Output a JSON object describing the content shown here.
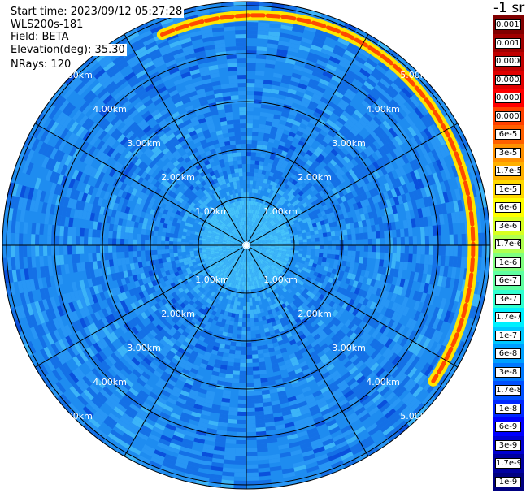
{
  "info": {
    "start_time": "Start time: 2023/09/12 05:27:28",
    "instrument": "WLS200s-181",
    "field": "Field: BETA",
    "elevation": "Elevation(deg): 35.30",
    "nrays": "NRays: 120"
  },
  "unit_label": "-1 sr",
  "range_labels": [
    "1.00km",
    "2.00km",
    "3.00km",
    "4.00km",
    "5.00km"
  ],
  "legend": {
    "labels": [
      "0.0017",
      "0.001",
      "0.0006",
      "0.0003",
      "0.00017",
      "0.0001",
      "6e-5",
      "3e-5",
      "1.7e-5",
      "1e-5",
      "6e-6",
      "3e-6",
      "1.7e-6",
      "1e-6",
      "6e-7",
      "3e-7",
      "1.7e-7",
      "1e-7",
      "6e-8",
      "3e-8",
      "1.7e-8",
      "1e-8",
      "6e-9",
      "3e-9",
      "1.7e-9",
      "1e-9"
    ],
    "colors": [
      "#800000",
      "#a00000",
      "#c00000",
      "#e00000",
      "#ff0000",
      "#ff4000",
      "#ff6000",
      "#ff9000",
      "#ffb000",
      "#ffd800",
      "#ffff00",
      "#d8ff20",
      "#b0ff50",
      "#80ff80",
      "#60ffa0",
      "#30ffd0",
      "#00f0ff",
      "#00c8ff",
      "#00a0ff",
      "#0078ff",
      "#0050ff",
      "#0028ff",
      "#0000ff",
      "#0000d0",
      "#0000a0",
      "#000080"
    ]
  },
  "colormap": {
    "background": "#1e8cf0",
    "variants": [
      "#1470e6",
      "#2896f5",
      "#3cb4f8",
      "#0a50dc",
      "#1e8cf0",
      "#46c3fa"
    ],
    "arc_core": "#ff4a00",
    "arc_edge": "#ffe600"
  }
}
